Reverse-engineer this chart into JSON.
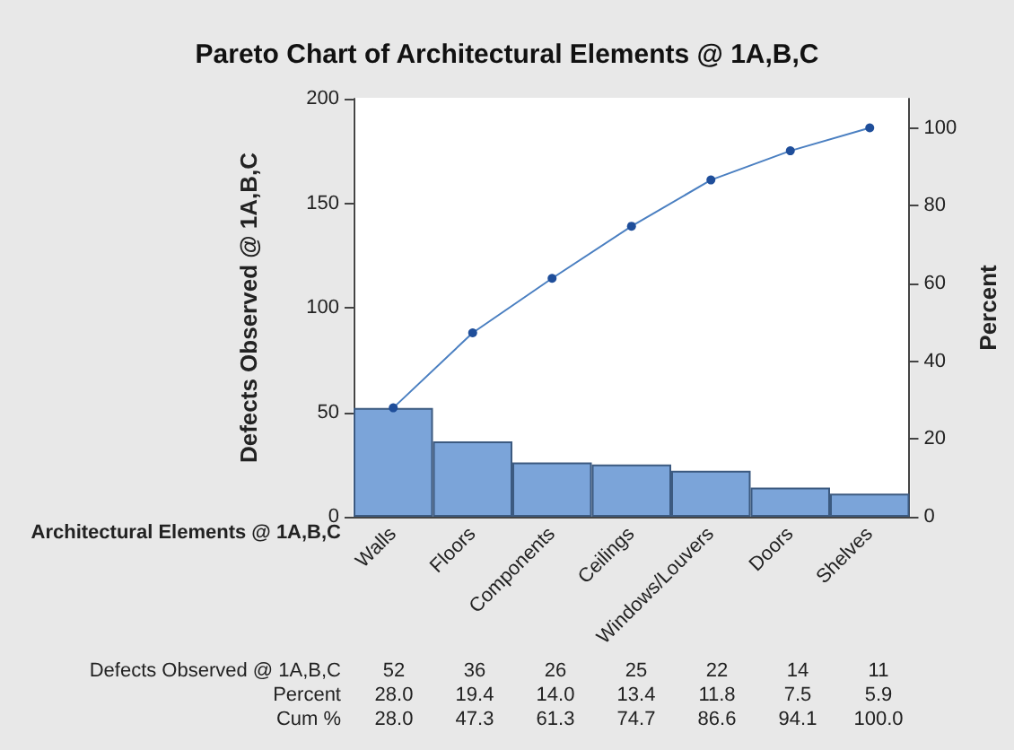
{
  "chart_data": {
    "type": "bar",
    "title": "Pareto Chart of Architectural Elements @ 1A,B,C",
    "xlabel": "Architectural Elements @ 1A,B,C",
    "ylabel": "Defects Observed @ 1A,B,C",
    "y2label": "Percent",
    "categories": [
      "Walls",
      "Floors",
      "Components",
      "Ceilings",
      "Windows/Louvers",
      "Doors",
      "Shelves"
    ],
    "series": [
      {
        "color": "#7ba4d9",
        "values": [
          52,
          36,
          26,
          25,
          22,
          14,
          11
        ],
        "value_labels": [
          "52",
          "36",
          "26",
          "25",
          "22",
          "14",
          "11"
        ]
      },
      {
        "type": "line",
        "axis": "y2",
        "color": "#4a7fc1",
        "values": [
          28.0,
          47.3,
          61.3,
          74.7,
          86.6,
          94.1,
          100.0
        ],
        "value_labels": [
          "28.0",
          "47.3",
          "61.3",
          "74.7",
          "86.6",
          "94.1",
          "100.0"
        ]
      }
    ],
    "annotations": [
      "Defects Observed @ 1A,B,C",
      "Percent",
      "Cum %",
      "28.0",
      "19.4",
      "14.0",
      "13.4",
      "11.8",
      "7.5",
      "5.9"
    ],
    "ylim": [
      0,
      200
    ],
    "yticks": [
      0,
      50,
      100,
      150,
      200
    ],
    "y2lim": [
      0,
      107.5
    ],
    "y2ticks": [
      0,
      20,
      40,
      60,
      80,
      100
    ],
    "grid": false,
    "marker": "circle",
    "line_style": "solid"
  }
}
